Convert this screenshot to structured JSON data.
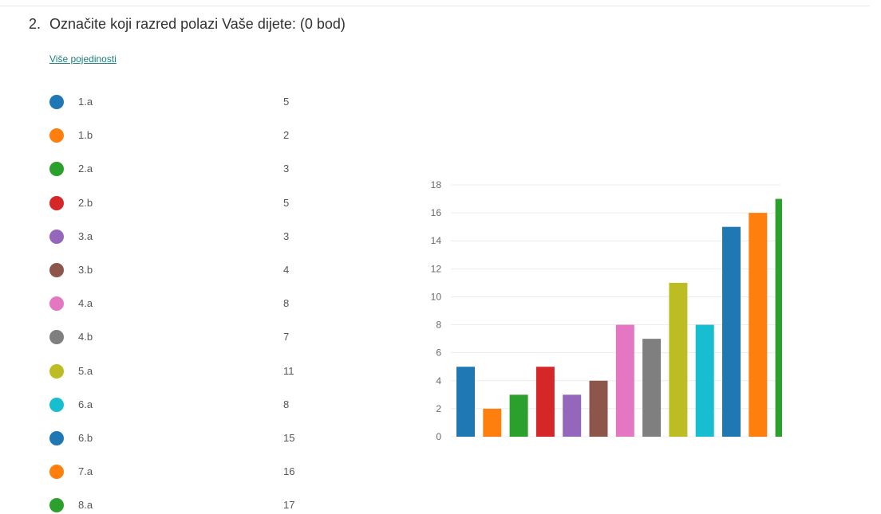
{
  "question": {
    "number": "2.",
    "text": "Označite koji razred polazi Vaše dijete: (0 bod)"
  },
  "details_link": "Više pojedinosti",
  "colors": {
    "link": "#1b7f7d"
  },
  "chart_data": {
    "type": "bar",
    "categories": [
      "1.a",
      "1.b",
      "2.a",
      "2.b",
      "3.a",
      "3.b",
      "4.a",
      "4.b",
      "5.a",
      "6.a",
      "6.b",
      "7.a",
      "8.a"
    ],
    "values": [
      5,
      2,
      3,
      5,
      3,
      4,
      8,
      7,
      11,
      8,
      15,
      16,
      17
    ],
    "colors": [
      "#1f77b4",
      "#ff7f0e",
      "#2ca02c",
      "#d62728",
      "#9467bd",
      "#8c564b",
      "#e377c2",
      "#7f7f7f",
      "#bcbd22",
      "#17becf",
      "#1f77b4",
      "#ff7f0e",
      "#2ca02c"
    ],
    "counts_text": [
      "5",
      "2",
      "3",
      "5",
      "3",
      "4",
      "8",
      "7",
      "11",
      "8",
      "15",
      "16",
      "17"
    ],
    "yticks": [
      "0",
      "2",
      "4",
      "6",
      "8",
      "10",
      "12",
      "14",
      "16",
      "18"
    ],
    "ylim": [
      0,
      18
    ],
    "title": "",
    "xlabel": "",
    "ylabel": "",
    "grid": true,
    "legend": "left"
  }
}
